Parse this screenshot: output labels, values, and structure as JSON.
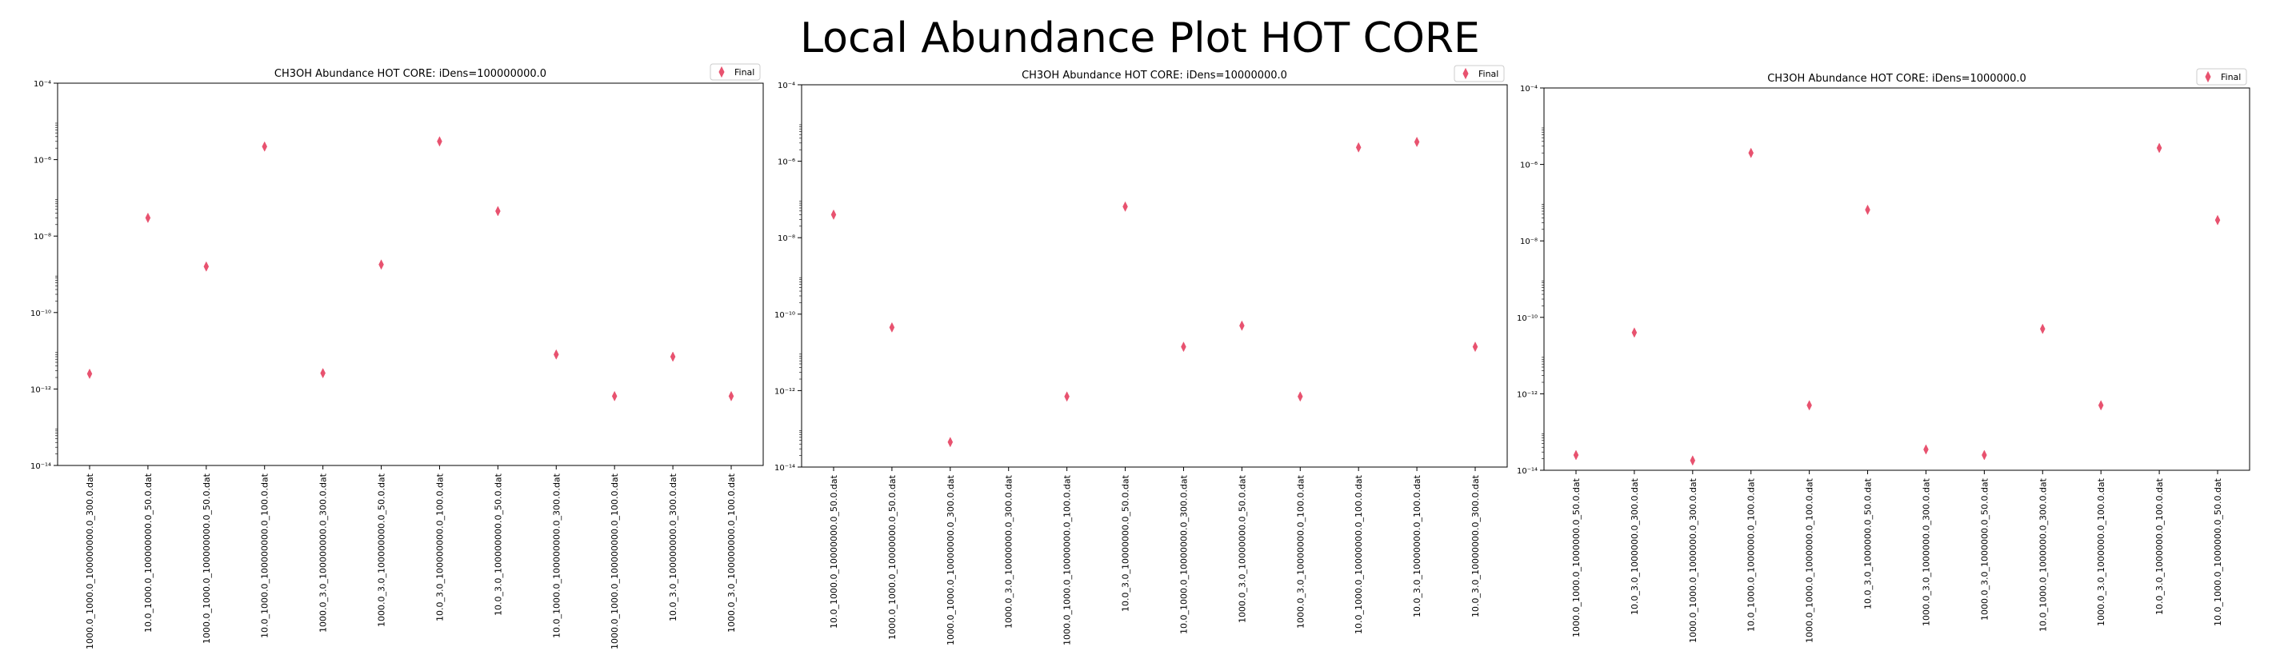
{
  "suptitle": "Local Abundance Plot HOT CORE",
  "marker_color": "#e8526f",
  "chart_data": [
    {
      "type": "scatter",
      "title": "CH3OH Abundance HOT CORE: iDens=100000000.0",
      "y_scale": "log",
      "ylim": [
        1e-14,
        0.0001
      ],
      "ytick_labels": [
        "10⁻¹⁴",
        "10⁻¹²",
        "10⁻¹⁰",
        "10⁻⁸",
        "10⁻⁶",
        "10⁻⁴"
      ],
      "ytick_exponents": [
        -14,
        -12,
        -10,
        -8,
        -6,
        -4
      ],
      "legend": {
        "label": "Final",
        "placement": "upper right"
      },
      "categories": [
        "1000.0_1000.0_100000000.0_300.0.dat",
        "10.0_1000.0_100000000.0_50.0.dat",
        "1000.0_1000.0_100000000.0_50.0.dat",
        "10.0_1000.0_100000000.0_100.0.dat",
        "1000.0_3.0_100000000.0_300.0.dat",
        "1000.0_3.0_100000000.0_50.0.dat",
        "10.0_3.0_100000000.0_100.0.dat",
        "10.0_3.0_100000000.0_50.0.dat",
        "10.0_1000.0_100000000.0_300.0.dat",
        "1000.0_1000.0_100000000.0_100.0.dat",
        "10.0_3.0_100000000.0_300.0.dat",
        "1000.0_3.0_100000000.0_100.0.dat"
      ],
      "series": [
        {
          "name": "Final",
          "values": [
            2.5e-12,
            3e-08,
            1.6e-09,
            2.2e-06,
            2.6e-12,
            1.8e-09,
            3e-06,
            4.5e-08,
            8e-12,
            6.5e-13,
            7e-12,
            6.5e-13
          ]
        }
      ]
    },
    {
      "type": "scatter",
      "title": "CH3OH Abundance HOT CORE: iDens=10000000.0",
      "y_scale": "log",
      "ylim": [
        1e-14,
        0.0001
      ],
      "ytick_labels": [
        "10⁻¹⁴",
        "10⁻¹²",
        "10⁻¹⁰",
        "10⁻⁸",
        "10⁻⁶",
        "10⁻⁴"
      ],
      "ytick_exponents": [
        -14,
        -12,
        -10,
        -8,
        -6,
        -4
      ],
      "legend": {
        "label": "Final",
        "placement": "upper right"
      },
      "categories": [
        "10.0_1000.0_10000000.0_50.0.dat",
        "1000.0_1000.0_10000000.0_50.0.dat",
        "1000.0_1000.0_10000000.0_300.0.dat",
        "1000.0_3.0_10000000.0_300.0.dat",
        "1000.0_1000.0_10000000.0_100.0.dat",
        "10.0_3.0_10000000.0_50.0.dat",
        "10.0_1000.0_10000000.0_300.0.dat",
        "1000.0_3.0_10000000.0_50.0.dat",
        "1000.0_3.0_10000000.0_100.0.dat",
        "10.0_1000.0_10000000.0_100.0.dat",
        "10.0_3.0_10000000.0_100.0.dat",
        "10.0_3.0_10000000.0_300.0.dat"
      ],
      "series": [
        {
          "name": "Final",
          "values": [
            4e-08,
            4.5e-11,
            4.5e-14,
            null,
            7e-13,
            6.5e-08,
            1.4e-11,
            5e-11,
            7e-13,
            2.3e-06,
            3.2e-06,
            1.4e-11
          ]
        }
      ]
    },
    {
      "type": "scatter",
      "title": "CH3OH Abundance HOT CORE: iDens=1000000.0",
      "y_scale": "log",
      "ylim": [
        1e-14,
        0.0001
      ],
      "ytick_labels": [
        "10⁻¹⁴",
        "10⁻¹²",
        "10⁻¹⁰",
        "10⁻⁸",
        "10⁻⁶",
        "10⁻⁴"
      ],
      "ytick_exponents": [
        -14,
        -12,
        -10,
        -8,
        -6,
        -4
      ],
      "legend": {
        "label": "Final",
        "placement": "upper right"
      },
      "categories": [
        "1000.0_1000.0_1000000.0_50.0.dat",
        "10.0_3.0_1000000.0_300.0.dat",
        "1000.0_1000.0_1000000.0_300.0.dat",
        "10.0_1000.0_1000000.0_100.0.dat",
        "1000.0_1000.0_1000000.0_100.0.dat",
        "10.0_3.0_1000000.0_50.0.dat",
        "1000.0_3.0_1000000.0_300.0.dat",
        "1000.0_3.0_1000000.0_50.0.dat",
        "10.0_1000.0_1000000.0_300.0.dat",
        "1000.0_3.0_1000000.0_100.0.dat",
        "10.0_3.0_1000000.0_100.0.dat",
        "10.0_1000.0_1000000.0_50.0.dat"
      ],
      "series": [
        {
          "name": "Final",
          "values": [
            2.5e-14,
            4e-11,
            1.8e-14,
            2e-06,
            5e-13,
            6.5e-08,
            3.5e-14,
            2.5e-14,
            5e-11,
            5e-13,
            2.7e-06,
            3.5e-08
          ]
        }
      ]
    }
  ]
}
